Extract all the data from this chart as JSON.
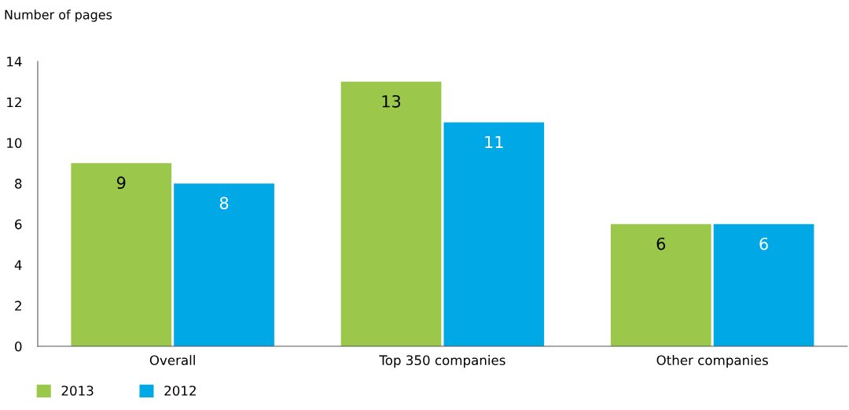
{
  "chart_data": {
    "type": "bar",
    "ylabel": "Number of pages",
    "categories": [
      "Overall",
      "Top 350 companies",
      "Other companies"
    ],
    "series": [
      {
        "name": "2013",
        "color": "#9bc84a",
        "values": [
          9,
          13,
          6
        ]
      },
      {
        "name": "2012",
        "color": "#00a9e6",
        "values": [
          8,
          11,
          6
        ]
      }
    ],
    "ylim": [
      0,
      14
    ],
    "yticks": [
      0,
      2,
      4,
      6,
      8,
      10,
      12,
      14
    ],
    "grid": false,
    "legend": "bottom left",
    "data_labels": true
  }
}
